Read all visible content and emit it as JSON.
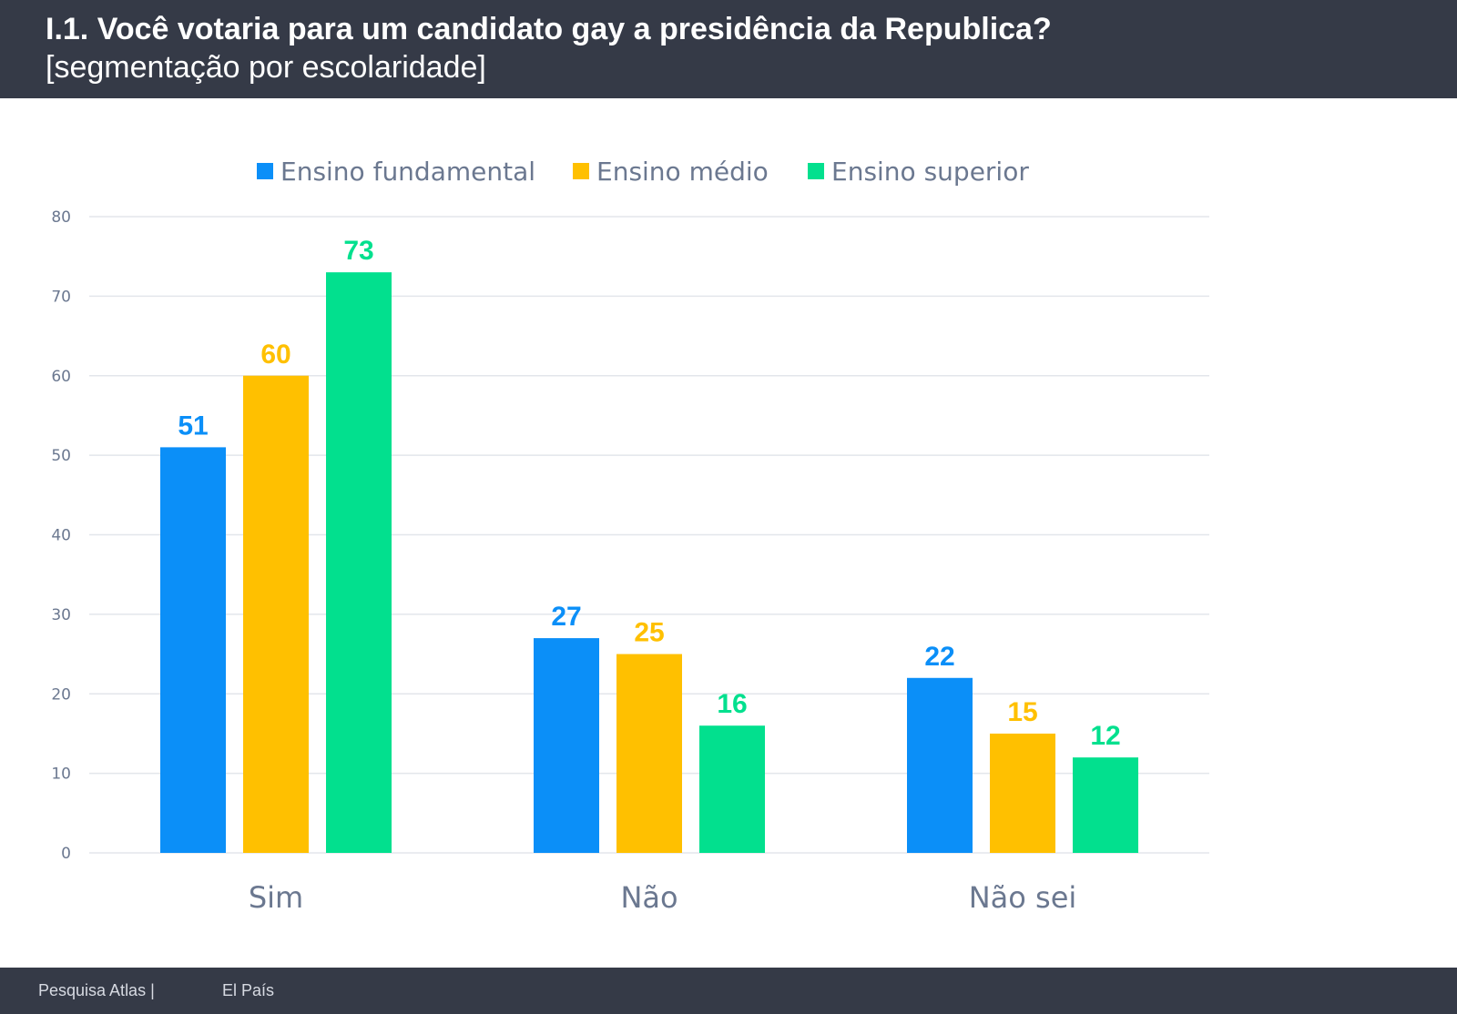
{
  "header": {
    "title": "I.1. Você votaria para um candidato gay a presidência da Republica?",
    "subtitle": "[segmentação por escolaridade]"
  },
  "chart_data": {
    "type": "bar",
    "categories": [
      "Sim",
      "Não",
      "Não sei"
    ],
    "series": [
      {
        "name": "Ensino fundamental",
        "color": "#0b8ff8",
        "values": [
          51,
          27,
          22
        ]
      },
      {
        "name": "Ensino médio",
        "color": "#ffc000",
        "values": [
          60,
          25,
          15
        ]
      },
      {
        "name": "Ensino superior",
        "color": "#02e08e",
        "values": [
          73,
          16,
          12
        ]
      }
    ],
    "data_labels": [
      [
        "51",
        "27",
        "22"
      ],
      [
        "60",
        "25",
        "15"
      ],
      [
        "73",
        "16",
        "12"
      ]
    ],
    "yticks": [
      0,
      10,
      20,
      30,
      40,
      50,
      60,
      70,
      80
    ],
    "ylim": [
      0,
      80
    ],
    "grid": true,
    "legend": "top",
    "xlabel": "",
    "ylabel": ""
  },
  "footer": {
    "source": "Pesquisa Atlas  |",
    "client": "El País"
  }
}
